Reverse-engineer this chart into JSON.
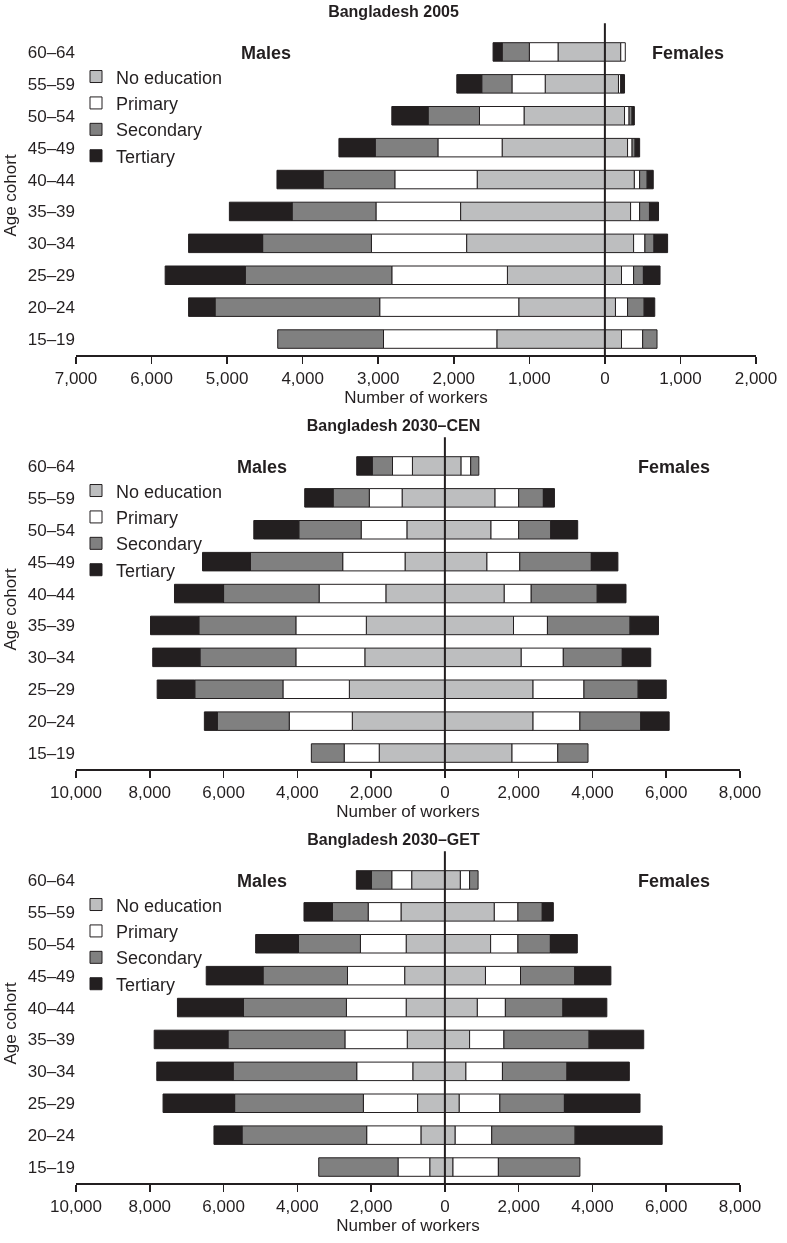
{
  "chart_data": [
    {
      "type": "bar",
      "orientation": "horizontal",
      "stacked": true,
      "title": "Bangladesh 2005",
      "xlabel": "Number of workers",
      "ylabel": "Age cohort",
      "annotations": [
        "Males",
        "Females"
      ],
      "categories": [
        "60–64",
        "55–59",
        "50–54",
        "45–49",
        "40–44",
        "35–39",
        "30–34",
        "25–29",
        "20–24",
        "15–19"
      ],
      "series": [
        {
          "name": "No education",
          "color": "#bdbebf",
          "values": [
            -620,
            -790,
            -1070,
            -1360,
            -1690,
            -1910,
            -1830,
            -1290,
            -1140,
            -1430
          ]
        },
        {
          "name": "Primary",
          "color": "#ffffff",
          "values": [
            -380,
            -440,
            -590,
            -850,
            -1090,
            -1120,
            -1260,
            -1530,
            -1840,
            -1500
          ]
        },
        {
          "name": "Secondary",
          "color": "#808080",
          "values": [
            -360,
            -400,
            -680,
            -830,
            -950,
            -1110,
            -1440,
            -1940,
            -2180,
            -1400
          ]
        },
        {
          "name": "Tertiary",
          "color": "#231f20",
          "values": [
            -120,
            -330,
            -480,
            -480,
            -610,
            -830,
            -980,
            -1060,
            -350,
            null
          ]
        },
        {
          "color": "#bdbebf",
          "values": [
            210,
            180,
            260,
            300,
            390,
            340,
            380,
            220,
            140,
            220
          ]
        },
        {
          "color": "#ffffff",
          "values": [
            60,
            30,
            60,
            60,
            70,
            120,
            150,
            160,
            160,
            280
          ]
        },
        {
          "color": "#808080",
          "values": [
            null,
            null,
            40,
            40,
            100,
            130,
            120,
            130,
            220,
            190
          ]
        },
        {
          "color": "#231f20",
          "values": [
            null,
            50,
            30,
            60,
            80,
            120,
            180,
            220,
            140,
            null
          ]
        }
      ],
      "xlim": [
        -7000,
        2000
      ],
      "xticks": [
        {
          "value": -7000,
          "label": "7,000"
        },
        {
          "value": -6000,
          "label": "6,000"
        },
        {
          "value": -5000,
          "label": "5,000"
        },
        {
          "value": -4000,
          "label": "4,000"
        },
        {
          "value": -3000,
          "label": "3,000"
        },
        {
          "value": -2000,
          "label": "2,000"
        },
        {
          "value": -1000,
          "label": "1,000"
        },
        {
          "value": 0,
          "label": "0"
        },
        {
          "value": 1000,
          "label": "1,000"
        },
        {
          "value": 2000,
          "label": "2,000"
        }
      ],
      "ref_lines": [
        {
          "axis": "x",
          "value": 0,
          "color": "#231f20"
        }
      ],
      "legend": "top left",
      "grid": false
    },
    {
      "type": "bar",
      "orientation": "horizontal",
      "stacked": true,
      "title": "Bangladesh 2030–CEN",
      "xlabel": "Number of workers",
      "ylabel": "Age cohort",
      "annotations": [
        "Males",
        "Females"
      ],
      "categories": [
        "60–64",
        "55–59",
        "50–54",
        "45–49",
        "40–44",
        "35–39",
        "30–34",
        "25–29",
        "20–24",
        "15–19"
      ],
      "series": [
        {
          "name": "No education",
          "color": "#bdbebf",
          "values": [
            -880,
            -1160,
            -1030,
            -1080,
            -1600,
            -2130,
            -2170,
            -2590,
            -2510,
            -1780
          ]
        },
        {
          "name": "Primary",
          "color": "#ffffff",
          "values": [
            -540,
            -890,
            -1240,
            -1690,
            -1810,
            -1910,
            -1870,
            -1800,
            -1710,
            -950
          ]
        },
        {
          "name": "Secondary",
          "color": "#808080",
          "values": [
            -550,
            -980,
            -1690,
            -2500,
            -2590,
            -2630,
            -2600,
            -2390,
            -1950,
            -890
          ]
        },
        {
          "name": "Tertiary",
          "color": "#231f20",
          "values": [
            -420,
            -770,
            -1220,
            -1300,
            -1330,
            -1310,
            -1280,
            -1020,
            -350,
            null
          ]
        },
        {
          "color": "#bdbebf",
          "values": [
            440,
            1360,
            1250,
            1140,
            1610,
            1860,
            2070,
            2390,
            2390,
            1820
          ]
        },
        {
          "color": "#ffffff",
          "values": [
            260,
            640,
            750,
            890,
            730,
            920,
            1140,
            1380,
            1270,
            1240
          ]
        },
        {
          "color": "#808080",
          "values": [
            220,
            670,
            870,
            1940,
            1790,
            2240,
            1600,
            1470,
            1650,
            820
          ]
        },
        {
          "color": "#231f20",
          "values": [
            null,
            300,
            730,
            720,
            780,
            770,
            770,
            760,
            770,
            null
          ]
        }
      ],
      "xlim": [
        -10000,
        8000
      ],
      "xticks": [
        {
          "value": -10000,
          "label": "10,000"
        },
        {
          "value": -8000,
          "label": "8,000"
        },
        {
          "value": -6000,
          "label": "6,000"
        },
        {
          "value": -4000,
          "label": "4,000"
        },
        {
          "value": -2000,
          "label": "2,000"
        },
        0,
        {
          "value": 2000,
          "label": "2,000"
        },
        {
          "value": 4000,
          "label": "4,000"
        },
        {
          "value": 6000,
          "label": "6,000"
        },
        {
          "value": 8000,
          "label": "8,000"
        }
      ],
      "ref_lines": [
        {
          "axis": "x",
          "value": 0,
          "color": "#231f20"
        }
      ],
      "legend": "top left",
      "grid": false
    },
    {
      "type": "bar",
      "orientation": "horizontal",
      "stacked": true,
      "title": "Bangladesh 2030–GET",
      "xlabel": "Number of workers",
      "ylabel": "Age cohort",
      "annotations": [
        "Males",
        "Females"
      ],
      "categories": [
        "60–64",
        "55–59",
        "50–54",
        "45–49",
        "40–44",
        "35–39",
        "30–34",
        "25–29",
        "20–24",
        "15–19"
      ],
      "series": [
        {
          "name": "No education",
          "color": "#bdbebf",
          "values": [
            -900,
            -1190,
            -1050,
            -1090,
            -1050,
            -1020,
            -870,
            -740,
            -650,
            -410
          ]
        },
        {
          "name": "Primary",
          "color": "#ffffff",
          "values": [
            -540,
            -890,
            -1240,
            -1550,
            -1620,
            -1690,
            -1520,
            -1470,
            -1470,
            -860
          ]
        },
        {
          "name": "Secondary",
          "color": "#808080",
          "values": [
            -550,
            -970,
            -1680,
            -2290,
            -2790,
            -3170,
            -3350,
            -3490,
            -3380,
            -2150
          ]
        },
        {
          "name": "Tertiary",
          "color": "#231f20",
          "values": [
            -410,
            -770,
            -1160,
            -1540,
            -1790,
            -2000,
            -2070,
            -1940,
            -760,
            null
          ]
        },
        {
          "color": "#bdbebf",
          "values": [
            420,
            1340,
            1240,
            1100,
            880,
            670,
            570,
            390,
            280,
            220
          ]
        },
        {
          "color": "#ffffff",
          "values": [
            250,
            640,
            740,
            950,
            760,
            930,
            990,
            1100,
            990,
            1230
          ]
        },
        {
          "color": "#808080",
          "values": [
            230,
            660,
            880,
            1470,
            1560,
            2310,
            1750,
            1750,
            2260,
            2210
          ]
        },
        {
          "color": "#231f20",
          "values": [
            null,
            300,
            730,
            980,
            1190,
            1480,
            1690,
            2050,
            2360,
            null
          ]
        }
      ],
      "xlim": [
        -10000,
        8000
      ],
      "xticks": [
        {
          "value": -10000,
          "label": "10,000"
        },
        {
          "value": -8000,
          "label": "8,000"
        },
        {
          "value": -6000,
          "label": "6,000"
        },
        {
          "value": -4000,
          "label": "4,000"
        },
        {
          "value": -2000,
          "label": "2,000"
        },
        0,
        {
          "value": 2000,
          "label": "2,000"
        },
        {
          "value": 4000,
          "label": "4,000"
        },
        {
          "value": 6000,
          "label": "6,000"
        },
        {
          "value": 8000,
          "label": "8,000"
        }
      ],
      "ref_lines": [
        {
          "axis": "x",
          "value": 0,
          "color": "#231f20"
        }
      ],
      "legend": "top left",
      "grid": false
    }
  ]
}
